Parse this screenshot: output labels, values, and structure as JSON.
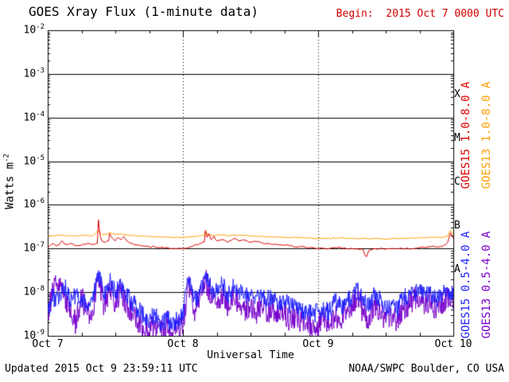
{
  "header": {
    "title": "GOES Xray Flux (1-minute data)",
    "begin_label": "Begin:  2015 Oct 7 0000 UTC",
    "begin_color": "#d40000"
  },
  "axes": {
    "ylabel_base": "Watts m",
    "ylabel_exp": "-2",
    "xlabel": "Universal Time"
  },
  "footer": {
    "updated": "Updated 2015 Oct 9 23:59:11 UTC",
    "source": "NOAA/SWPC Boulder, CO USA"
  },
  "chart_data": {
    "type": "line",
    "title": "GOES Xray Flux (1-minute data)",
    "xlabel": "Universal Time",
    "ylabel": "Watts m^-2",
    "y_scale": "log",
    "ylim": [
      1e-09,
      0.01
    ],
    "xlim_hours": [
      0,
      72
    ],
    "x_origin": "2015 Oct 7 0000 UTC",
    "grid": {
      "horizontal": "solid",
      "vertical_day_lines": "dotted"
    },
    "legend_position": "right-rotated",
    "y_tick_base": "10",
    "y_tick_exponents": [
      -2,
      -3,
      -4,
      -5,
      -6,
      -7,
      -8,
      -9
    ],
    "x_ticks": [
      {
        "hour": 0,
        "label": "Oct 7"
      },
      {
        "hour": 24,
        "label": "Oct 8"
      },
      {
        "hour": 48,
        "label": "Oct 9"
      },
      {
        "hour": 72,
        "label": "Oct 10"
      }
    ],
    "flare_classes": [
      {
        "label": "X",
        "band_top_exp": -3,
        "band_bottom_exp": -4
      },
      {
        "label": "M",
        "band_top_exp": -4,
        "band_bottom_exp": -5
      },
      {
        "label": "C",
        "band_top_exp": -5,
        "band_bottom_exp": -6
      },
      {
        "label": "B",
        "band_top_exp": -6,
        "band_bottom_exp": -7
      },
      {
        "label": "A",
        "band_top_exp": -7,
        "band_bottom_exp": -8
      }
    ],
    "series": [
      {
        "name": "GOES15 1.0-8.0 A",
        "color": "#e00000",
        "noise": 0.015,
        "seed": 1,
        "points": [
          [
            0,
            1.1e-07
          ],
          [
            0.5,
            1.2e-07
          ],
          [
            1,
            1.3e-07
          ],
          [
            1.5,
            1.15e-07
          ],
          [
            2,
            1.2e-07
          ],
          [
            2.5,
            1.5e-07
          ],
          [
            3,
            1.25e-07
          ],
          [
            3.5,
            1.2e-07
          ],
          [
            4,
            1.3e-07
          ],
          [
            5,
            1.15e-07
          ],
          [
            6,
            1.2e-07
          ],
          [
            7,
            1.3e-07
          ],
          [
            8,
            1.25e-07
          ],
          [
            8.8,
            1.3e-07
          ],
          [
            9,
            4.5e-07
          ],
          [
            9.3,
            2e-07
          ],
          [
            9.6,
            1.5e-07
          ],
          [
            10,
            1.4e-07
          ],
          [
            10.8,
            1.5e-07
          ],
          [
            11,
            2.2e-07
          ],
          [
            11.5,
            1.7e-07
          ],
          [
            12,
            1.5e-07
          ],
          [
            12.5,
            1.8e-07
          ],
          [
            13,
            1.6e-07
          ],
          [
            13.5,
            1.9e-07
          ],
          [
            14,
            1.5e-07
          ],
          [
            15,
            1.3e-07
          ],
          [
            16,
            1.2e-07
          ],
          [
            17,
            1.15e-07
          ],
          [
            18,
            1.1e-07
          ],
          [
            19,
            1.1e-07
          ],
          [
            20,
            1.05e-07
          ],
          [
            21,
            1.05e-07
          ],
          [
            22,
            1e-07
          ],
          [
            23,
            1e-07
          ],
          [
            24,
            1e-07
          ],
          [
            25,
            1.05e-07
          ],
          [
            26,
            1.2e-07
          ],
          [
            27,
            1.3e-07
          ],
          [
            27.8,
            1.4e-07
          ],
          [
            28,
            2.6e-07
          ],
          [
            28.3,
            1.8e-07
          ],
          [
            28.6,
            2.2e-07
          ],
          [
            29,
            1.6e-07
          ],
          [
            29.5,
            1.9e-07
          ],
          [
            30,
            1.5e-07
          ],
          [
            31,
            1.6e-07
          ],
          [
            32,
            1.4e-07
          ],
          [
            33,
            1.7e-07
          ],
          [
            34,
            1.5e-07
          ],
          [
            35,
            1.55e-07
          ],
          [
            36,
            1.4e-07
          ],
          [
            37,
            1.45e-07
          ],
          [
            38,
            1.35e-07
          ],
          [
            39,
            1.3e-07
          ],
          [
            40,
            1.25e-07
          ],
          [
            41,
            1.2e-07
          ],
          [
            42,
            1.2e-07
          ],
          [
            43,
            1.15e-07
          ],
          [
            44,
            1.1e-07
          ],
          [
            45,
            1.1e-07
          ],
          [
            46,
            1.05e-07
          ],
          [
            47,
            1.05e-07
          ],
          [
            48,
            1e-07
          ],
          [
            49,
            1e-07
          ],
          [
            50,
            1e-07
          ],
          [
            51,
            1.05e-07
          ],
          [
            52,
            1.05e-07
          ],
          [
            53,
            1e-07
          ],
          [
            54,
            1e-07
          ],
          [
            55,
            9.8e-08
          ],
          [
            56,
            9.5e-08
          ],
          [
            56.3,
            7e-08
          ],
          [
            56.6,
            6.5e-08
          ],
          [
            57,
            9e-08
          ],
          [
            58,
            1e-07
          ],
          [
            59,
            1e-07
          ],
          [
            60,
            9.8e-08
          ],
          [
            61,
            1e-07
          ],
          [
            62,
            1e-07
          ],
          [
            63,
            1e-07
          ],
          [
            64,
            1e-07
          ],
          [
            65,
            1e-07
          ],
          [
            66,
            1.05e-07
          ],
          [
            67,
            1.05e-07
          ],
          [
            68,
            1.1e-07
          ],
          [
            69,
            1.1e-07
          ],
          [
            70,
            1.1e-07
          ],
          [
            70.5,
            1.2e-07
          ],
          [
            71,
            1.4e-07
          ],
          [
            71.5,
            2.3e-07
          ],
          [
            72,
            1.7e-07
          ]
        ]
      },
      {
        "name": "GOES13 1.0-8.0 A",
        "color": "#ffa000",
        "noise": 0.01,
        "seed": 2,
        "points": [
          [
            0,
            1.9e-07
          ],
          [
            2,
            2e-07
          ],
          [
            4,
            1.95e-07
          ],
          [
            6,
            2e-07
          ],
          [
            8,
            1.95e-07
          ],
          [
            9,
            2.6e-07
          ],
          [
            9.4,
            2.2e-07
          ],
          [
            10,
            2.05e-07
          ],
          [
            11,
            2.3e-07
          ],
          [
            12,
            2.1e-07
          ],
          [
            13,
            2.15e-07
          ],
          [
            14,
            2.05e-07
          ],
          [
            15,
            2e-07
          ],
          [
            16,
            1.95e-07
          ],
          [
            18,
            1.9e-07
          ],
          [
            20,
            1.85e-07
          ],
          [
            22,
            1.8e-07
          ],
          [
            24,
            1.8e-07
          ],
          [
            26,
            1.9e-07
          ],
          [
            27.8,
            2e-07
          ],
          [
            28,
            2.5e-07
          ],
          [
            28.4,
            2.1e-07
          ],
          [
            29,
            2.05e-07
          ],
          [
            30,
            2e-07
          ],
          [
            31,
            2.05e-07
          ],
          [
            32,
            1.95e-07
          ],
          [
            33,
            2.05e-07
          ],
          [
            34,
            2e-07
          ],
          [
            35,
            2e-07
          ],
          [
            36,
            1.95e-07
          ],
          [
            38,
            1.9e-07
          ],
          [
            40,
            1.85e-07
          ],
          [
            42,
            1.8e-07
          ],
          [
            44,
            1.8e-07
          ],
          [
            46,
            1.75e-07
          ],
          [
            48,
            1.7e-07
          ],
          [
            50,
            1.7e-07
          ],
          [
            52,
            1.75e-07
          ],
          [
            54,
            1.7e-07
          ],
          [
            56,
            1.7e-07
          ],
          [
            58,
            1.7e-07
          ],
          [
            60,
            1.65e-07
          ],
          [
            62,
            1.7e-07
          ],
          [
            64,
            1.7e-07
          ],
          [
            66,
            1.75e-07
          ],
          [
            68,
            1.8e-07
          ],
          [
            70,
            1.8e-07
          ],
          [
            71,
            1.9e-07
          ],
          [
            71.5,
            2.6e-07
          ],
          [
            72,
            2.1e-07
          ]
        ]
      },
      {
        "name": "GOES15 0.5-4.0 A",
        "color": "#2020ff",
        "noise": 0.22,
        "seed": 3,
        "x_start": 0,
        "x_step": 1,
        "y_multiplier": 1e-09,
        "y": [
          4,
          8,
          6,
          14,
          6,
          9,
          7,
          5,
          6,
          30,
          8,
          18,
          10,
          13,
          8,
          6,
          4,
          3,
          2.5,
          3,
          2,
          2.5,
          2,
          2.2,
          3,
          20,
          7,
          9,
          28,
          12,
          10,
          15,
          9,
          13,
          11,
          9,
          9,
          8,
          8,
          7,
          7,
          6,
          6,
          5,
          5,
          4,
          3.5,
          3,
          3.5,
          4,
          3.5,
          6,
          5,
          6,
          8,
          12,
          6,
          5,
          9,
          7,
          4,
          5,
          4,
          7,
          8,
          10,
          12,
          8,
          10,
          7,
          9,
          11,
          9
        ]
      },
      {
        "name": "GOES13 0.5-4.0 A",
        "color": "#7700cc",
        "noise": 0.28,
        "seed": 4,
        "x_start": 0,
        "x_step": 1,
        "y_multiplier": 1e-09,
        "y": [
          3,
          12,
          20,
          8,
          3,
          2,
          8,
          3,
          4,
          25,
          5,
          12,
          6,
          10,
          5,
          3,
          2,
          1.5,
          1.2,
          2,
          1.2,
          1.5,
          1.2,
          1.4,
          2,
          15,
          4,
          7,
          20,
          8,
          6,
          9,
          5,
          8,
          6,
          4,
          5,
          3.5,
          4.5,
          3,
          4,
          2.5,
          3.5,
          2,
          3,
          2,
          2,
          1.5,
          1.8,
          2.5,
          1.5,
          3,
          2,
          4,
          5,
          8,
          3,
          2.5,
          5,
          3,
          2,
          3,
          2,
          4,
          5,
          7,
          8,
          5,
          6,
          4,
          6,
          8,
          5
        ]
      }
    ]
  }
}
